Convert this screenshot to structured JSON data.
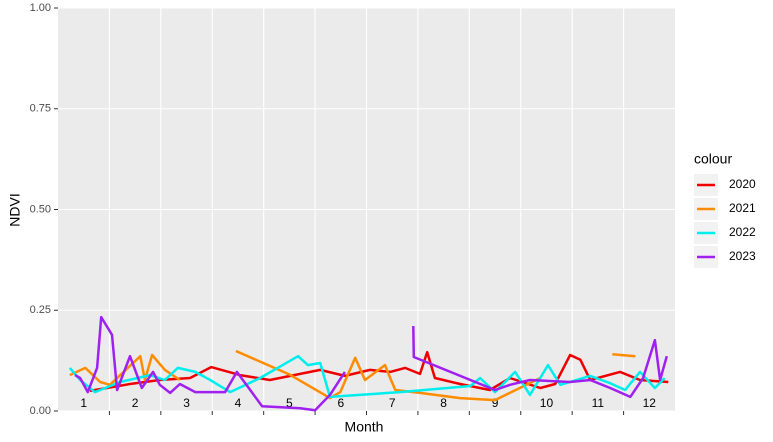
{
  "chart_data": {
    "type": "line",
    "x_label": "Month",
    "y_label": "NDVI",
    "legend_title": "colour",
    "legend_position": "right",
    "xlim": [
      1,
      13
    ],
    "xticks": [
      2,
      3,
      4,
      5,
      6,
      7,
      8,
      9,
      10,
      11,
      12
    ],
    "x_labels": [
      {
        "value": 1.5,
        "label": "1"
      },
      {
        "value": 2.5,
        "label": "2"
      },
      {
        "value": 3.5,
        "label": "3"
      },
      {
        "value": 4.5,
        "label": "4"
      },
      {
        "value": 5.5,
        "label": "5"
      },
      {
        "value": 6.5,
        "label": "6"
      },
      {
        "value": 7.5,
        "label": "7"
      },
      {
        "value": 8.5,
        "label": "8"
      },
      {
        "value": 9.5,
        "label": "9"
      },
      {
        "value": 10.5,
        "label": "10"
      },
      {
        "value": 11.5,
        "label": "11"
      },
      {
        "value": 12.5,
        "label": "12"
      }
    ],
    "ylim": [
      0,
      1
    ],
    "yticks": [
      {
        "value": 0,
        "label": "0.00"
      },
      {
        "value": 0.25,
        "label": "0.25"
      },
      {
        "value": 0.5,
        "label": "0.50"
      },
      {
        "value": 0.75,
        "label": "0.75"
      },
      {
        "value": 1,
        "label": "1.00"
      }
    ],
    "grid": true,
    "series": [
      {
        "name": "2020",
        "color": "#ee0000",
        "x": [
          1.62,
          2.4,
          2.98,
          3.57,
          3.98,
          4.54,
          5.12,
          5.71,
          6.1,
          6.58,
          7.07,
          7.46,
          7.75,
          8.04,
          8.18,
          8.33,
          8.82,
          9.4,
          9.79,
          10.38,
          10.67,
          10.96,
          11.16,
          11.35,
          11.93,
          12.32,
          12.87
        ],
        "values": [
          0.05,
          0.067,
          0.077,
          0.082,
          0.109,
          0.089,
          0.077,
          0.092,
          0.102,
          0.087,
          0.102,
          0.097,
          0.107,
          0.092,
          0.146,
          0.082,
          0.067,
          0.052,
          0.082,
          0.057,
          0.067,
          0.139,
          0.127,
          0.077,
          0.097,
          0.077,
          0.072
        ]
      },
      {
        "name": "2021",
        "color": "#ff8c00",
        "x": [
          1.23,
          1.53,
          1.82,
          2.01,
          2.6,
          2.69,
          2.83,
          3.08,
          3.37,
          null,
          4.46,
          5.51,
          6.29,
          6.49,
          6.78,
          6.97,
          7.36,
          7.46,
          7.56,
          8.04,
          8.82,
          9.5,
          10.38,
          null,
          11.78,
          12.23
        ],
        "values": [
          0.089,
          0.107,
          0.072,
          0.065,
          0.136,
          0.077,
          0.139,
          0.102,
          0.077,
          null,
          0.149,
          0.09,
          0.032,
          0.047,
          0.132,
          0.077,
          0.114,
          0.082,
          0.052,
          0.045,
          0.032,
          0.027,
          0.082,
          null,
          0.141,
          0.136
        ]
      },
      {
        "name": "2022",
        "color": "#00eeee",
        "x": [
          1.23,
          1.43,
          1.72,
          2.21,
          2.79,
          3.08,
          3.33,
          3.67,
          3.96,
          4.35,
          4.93,
          5.67,
          5.86,
          6.1,
          6.29,
          7.65,
          9.02,
          9.21,
          9.5,
          9.89,
          10.18,
          10.53,
          10.77,
          11.35,
          11.74,
          12.03,
          12.32,
          12.61,
          12.8
        ],
        "values": [
          0.107,
          0.077,
          0.047,
          0.072,
          0.089,
          0.077,
          0.107,
          0.097,
          0.077,
          0.047,
          0.082,
          0.136,
          0.114,
          0.119,
          0.035,
          0.047,
          0.062,
          0.082,
          0.047,
          0.097,
          0.04,
          0.114,
          0.065,
          0.087,
          0.069,
          0.052,
          0.097,
          0.057,
          0.082
        ]
      },
      {
        "name": "2023",
        "color": "#a020f0",
        "x": [
          1.33,
          1.43,
          1.58,
          1.76,
          1.84,
          2.05,
          2.15,
          2.4,
          2.63,
          2.85,
          2.98,
          3.18,
          3.37,
          3.67,
          4.25,
          4.48,
          4.97,
          5.71,
          6.0,
          6.29,
          6.58,
          null,
          7.91,
          7.92,
          9.5,
          9.79,
          10.18,
          10.96,
          11.35,
          11.74,
          12.13,
          12.38,
          12.61,
          12.71,
          12.84
        ],
        "values": [
          0.089,
          0.082,
          0.047,
          0.107,
          0.233,
          0.189,
          0.052,
          0.136,
          0.057,
          0.097,
          0.065,
          0.045,
          0.067,
          0.047,
          0.047,
          0.097,
          0.012,
          0.007,
          0.002,
          0.04,
          0.097,
          null,
          0.211,
          0.134,
          0.052,
          0.065,
          0.077,
          0.072,
          0.077,
          0.057,
          0.035,
          0.082,
          0.176,
          0.077,
          0.136
        ]
      }
    ]
  }
}
